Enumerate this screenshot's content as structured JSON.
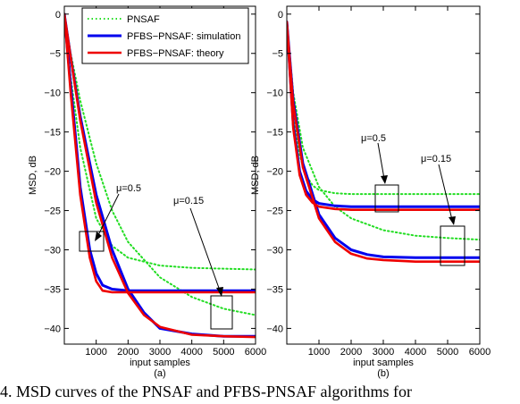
{
  "caption": "4.  MSD curves of the PNSAF and PFBS-PNSAF algorithms for",
  "legend": [
    {
      "label": "PNSAF",
      "color": "#22dd22",
      "style": "dotted"
    },
    {
      "label": "PFBS−PNSAF: simulation",
      "color": "#0000ee",
      "style": "solid"
    },
    {
      "label": "PFBS−PNSAF: theory",
      "color": "#ee0000",
      "style": "solid"
    }
  ],
  "chart_data": [
    {
      "type": "line",
      "panel": "(a)",
      "xlabel": "input samples",
      "ylabel": "MSD, dB",
      "xlim": [
        0,
        6000
      ],
      "ylim": [
        -42,
        1
      ],
      "xticks": [
        "1000",
        "2000",
        "3000",
        "4000",
        "5000",
        "6000"
      ],
      "xtick_values": [
        1000,
        2000,
        3000,
        4000,
        5000,
        6000
      ],
      "yticks": [
        "0",
        "−5",
        "−10",
        "−15",
        "−20",
        "−25",
        "−30",
        "−35",
        "−40"
      ],
      "ytick_values": [
        0,
        -5,
        -10,
        -15,
        -20,
        -25,
        -30,
        -35,
        -40
      ],
      "annotations": [
        "μ=0.5",
        "μ=0.15"
      ],
      "series": [
        {
          "name": "PNSAF",
          "group": "mu=0.5",
          "x": [
            0,
            200,
            500,
            1000,
            1500,
            2000,
            3000,
            4000,
            5000,
            6000
          ],
          "y": [
            0,
            -8,
            -17,
            -26,
            -29.5,
            -31,
            -32,
            -32.3,
            -32.4,
            -32.5
          ]
        },
        {
          "name": "PNSAF",
          "group": "mu=0.15",
          "x": [
            0,
            200,
            500,
            1000,
            1500,
            2000,
            3000,
            4000,
            5000,
            6000
          ],
          "y": [
            0,
            -5,
            -11,
            -19,
            -25,
            -29,
            -33.5,
            -36,
            -37.5,
            -38.3
          ]
        },
        {
          "name": "PFBS−PNSAF: simulation",
          "group": "mu=0.5",
          "x": [
            0,
            200,
            500,
            800,
            1000,
            1200,
            1500,
            2000,
            3000,
            4000,
            5000,
            6000
          ],
          "y": [
            0,
            -9,
            -22,
            -30,
            -33,
            -34.5,
            -35,
            -35.2,
            -35.2,
            -35.2,
            -35.2,
            -35.2
          ]
        },
        {
          "name": "PFBS−PNSAF: simulation",
          "group": "mu=0.15",
          "x": [
            0,
            200,
            500,
            1000,
            1500,
            2000,
            2500,
            3000,
            4000,
            5000,
            6000
          ],
          "y": [
            0,
            -5.5,
            -13,
            -23,
            -30,
            -35,
            -38,
            -40,
            -40.7,
            -41,
            -41
          ]
        },
        {
          "name": "PFBS−PNSAF: theory",
          "group": "mu=0.5",
          "x": [
            0,
            200,
            500,
            800,
            1000,
            1200,
            1500,
            2000,
            3000,
            6000
          ],
          "y": [
            0,
            -10,
            -23,
            -31,
            -34,
            -35.2,
            -35.4,
            -35.4,
            -35.4,
            -35.4
          ]
        },
        {
          "name": "PFBS−PNSAF: theory",
          "group": "mu=0.15",
          "x": [
            0,
            200,
            500,
            1000,
            1500,
            2000,
            2500,
            3000,
            4000,
            5000,
            6000
          ],
          "y": [
            0,
            -5.5,
            -13.5,
            -24,
            -31,
            -35.5,
            -38.3,
            -39.8,
            -40.8,
            -41,
            -41.1
          ]
        }
      ]
    },
    {
      "type": "line",
      "panel": "(b)",
      "xlabel": "input samples",
      "ylabel": "MSD, dB",
      "xlim": [
        0,
        6000
      ],
      "ylim": [
        -42,
        1
      ],
      "xticks": [
        "1000",
        "2000",
        "3000",
        "4000",
        "5000",
        "6000"
      ],
      "xtick_values": [
        1000,
        2000,
        3000,
        4000,
        5000,
        6000
      ],
      "yticks": [
        "0",
        "−5",
        "−10",
        "−15",
        "−20",
        "−25",
        "−30",
        "−35",
        "−40"
      ],
      "ytick_values": [
        0,
        -5,
        -10,
        -15,
        -20,
        -25,
        -30,
        -35,
        -40
      ],
      "annotations": [
        "μ=0.5",
        "μ=0.15"
      ],
      "series": [
        {
          "name": "PNSAF",
          "group": "mu=0.5",
          "x": [
            0,
            200,
            400,
            600,
            800,
            1000,
            1500,
            2000,
            3000,
            6000
          ],
          "y": [
            -1,
            -13,
            -18,
            -20.5,
            -21.8,
            -22.4,
            -22.8,
            -22.9,
            -22.9,
            -22.9
          ]
        },
        {
          "name": "PNSAF",
          "group": "mu=0.15",
          "x": [
            0,
            200,
            500,
            1000,
            1500,
            2000,
            3000,
            4000,
            5000,
            6000
          ],
          "y": [
            -1,
            -10,
            -17,
            -22,
            -24.5,
            -26,
            -27.5,
            -28.2,
            -28.5,
            -28.7
          ]
        },
        {
          "name": "PFBS−PNSAF: simulation",
          "group": "mu=0.5",
          "x": [
            0,
            200,
            400,
            600,
            800,
            1000,
            1500,
            2000,
            3000,
            6000
          ],
          "y": [
            -1,
            -14,
            -20,
            -22.5,
            -23.6,
            -24.1,
            -24.4,
            -24.5,
            -24.5,
            -24.5
          ]
        },
        {
          "name": "PFBS−PNSAF: simulation",
          "group": "mu=0.15",
          "x": [
            0,
            200,
            500,
            1000,
            1500,
            2000,
            2500,
            3000,
            4000,
            5000,
            6000
          ],
          "y": [
            -1,
            -11,
            -19,
            -25.5,
            -28.5,
            -30,
            -30.6,
            -30.9,
            -31,
            -31,
            -31
          ]
        },
        {
          "name": "PFBS−PNSAF: theory",
          "group": "mu=0.5",
          "x": [
            0,
            200,
            400,
            600,
            800,
            1000,
            1500,
            2000,
            3000,
            6000
          ],
          "y": [
            -1,
            -14.5,
            -20.5,
            -23,
            -24,
            -24.5,
            -24.8,
            -24.9,
            -24.9,
            -24.9
          ]
        },
        {
          "name": "PFBS−PNSAF: theory",
          "group": "mu=0.15",
          "x": [
            0,
            200,
            500,
            1000,
            1500,
            2000,
            2500,
            3000,
            4000,
            5000,
            6000
          ],
          "y": [
            -1,
            -11.5,
            -19.5,
            -26,
            -29,
            -30.5,
            -31.1,
            -31.3,
            -31.5,
            -31.5,
            -31.5
          ]
        }
      ]
    }
  ]
}
